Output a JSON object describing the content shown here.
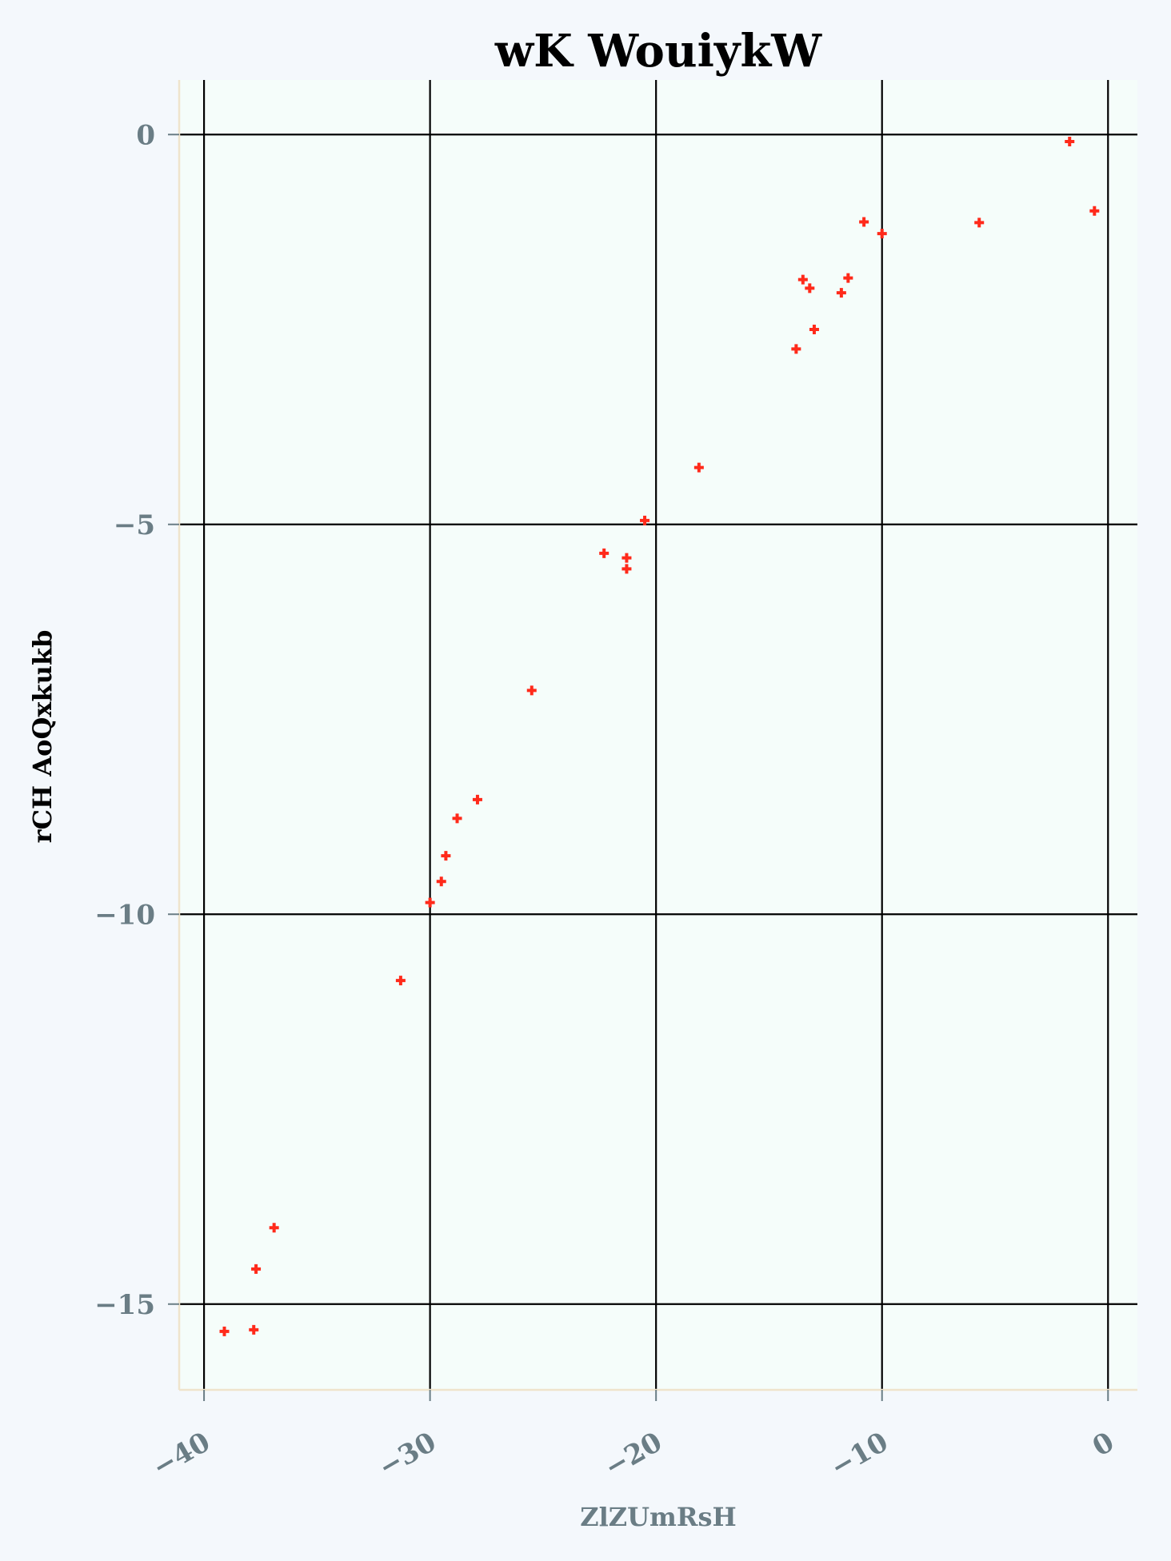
{
  "chart_data": {
    "type": "scatter",
    "title": "wK WouiykW",
    "xlabel": "ZlZUmRsH",
    "ylabel": "rCH AoQxkukb",
    "xlim": [
      -41.1,
      1.3
    ],
    "ylim": [
      -16.1,
      0.7
    ],
    "xticks": [
      -40,
      -30,
      -20,
      -10,
      0
    ],
    "xtick_labels": [
      "−40",
      "−30",
      "−20",
      "−10",
      "0"
    ],
    "yticks": [
      0,
      -5,
      -10,
      -15
    ],
    "ytick_labels": [
      "0",
      "−5",
      "−10",
      "−15"
    ],
    "grid": true,
    "marker": "plus",
    "colors": {
      "page_background": "#f4f8fc",
      "plot_background": "#f5fdfa",
      "points": "#ff2a1a",
      "grid": "#000000",
      "axis_spine": "#efe4cc",
      "tick_text": "#6a7d85"
    },
    "series": [
      {
        "points": [
          [
            -39.1,
            -15.35
          ],
          [
            -37.8,
            -15.33
          ],
          [
            -37.7,
            -14.55
          ],
          [
            -36.9,
            -14.02
          ],
          [
            -31.3,
            -10.85
          ],
          [
            -30.0,
            -9.85
          ],
          [
            -29.5,
            -9.58
          ],
          [
            -29.3,
            -9.25
          ],
          [
            -28.8,
            -8.77
          ],
          [
            -27.9,
            -8.53
          ],
          [
            -25.5,
            -7.13
          ],
          [
            -22.3,
            -5.37
          ],
          [
            -21.3,
            -5.43
          ],
          [
            -21.3,
            -5.57
          ],
          [
            -20.5,
            -4.95
          ],
          [
            -18.1,
            -4.27
          ],
          [
            -13.8,
            -2.75
          ],
          [
            -13.5,
            -1.86
          ],
          [
            -13.2,
            -1.97
          ],
          [
            -13.0,
            -2.5
          ],
          [
            -11.8,
            -2.03
          ],
          [
            -11.5,
            -1.84
          ],
          [
            -10.8,
            -1.12
          ],
          [
            -10.0,
            -1.27
          ],
          [
            -5.7,
            -1.13
          ],
          [
            -1.7,
            -0.09
          ],
          [
            -0.6,
            -0.98
          ]
        ]
      }
    ]
  }
}
